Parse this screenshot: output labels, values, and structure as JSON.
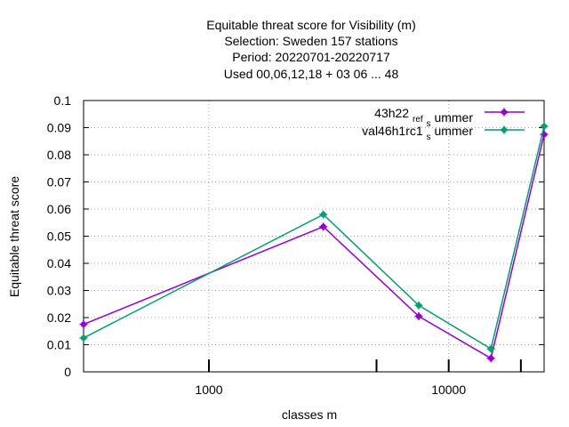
{
  "chart_data": {
    "type": "line",
    "title_lines": [
      "Equitable threat score  for Visibility (m)",
      "Selection: Sweden    157 stations",
      "Period: 20220701-20220717",
      "Used  00,06,12,18  + 03 06 ... 48"
    ],
    "xlabel": "classes m",
    "ylabel": "Equitable threat score",
    "x_scale": "log",
    "xlim": [
      300,
      25000
    ],
    "ylim": [
      0,
      0.1
    ],
    "grid": true,
    "legend_position": "top-right",
    "x_ticks": [
      {
        "value": 1000,
        "label": "1000"
      },
      {
        "value": 10000,
        "label": "10000"
      }
    ],
    "x_minor_ticks": [
      5000,
      20000
    ],
    "y_ticks": [
      {
        "value": 0,
        "label": "0"
      },
      {
        "value": 0.01,
        "label": "0.01"
      },
      {
        "value": 0.02,
        "label": "0.02"
      },
      {
        "value": 0.03,
        "label": "0.03"
      },
      {
        "value": 0.04,
        "label": "0.04"
      },
      {
        "value": 0.05,
        "label": "0.05"
      },
      {
        "value": 0.06,
        "label": "0.06"
      },
      {
        "value": 0.07,
        "label": "0.07"
      },
      {
        "value": 0.08,
        "label": "0.08"
      },
      {
        "value": 0.09,
        "label": "0.09"
      },
      {
        "value": 0.1,
        "label": "0.1"
      }
    ],
    "series": [
      {
        "legend_main": "43h22",
        "legend_sub1": "ref",
        "legend_mid": "",
        "legend_sub2": "s",
        "legend_tail": "ummer",
        "color": "#9400d3",
        "x": [
          300,
          3000,
          7500,
          15000,
          25000
        ],
        "y": [
          0.0175,
          0.0535,
          0.0205,
          0.005,
          0.0875
        ]
      },
      {
        "legend_main": "val46h1rc1",
        "legend_sub1": "",
        "legend_mid": "",
        "legend_sub2": "s",
        "legend_tail": "ummer",
        "color": "#009e73",
        "x": [
          300,
          3000,
          7500,
          15000,
          25000
        ],
        "y": [
          0.0125,
          0.058,
          0.0245,
          0.0085,
          0.0905
        ]
      }
    ]
  }
}
